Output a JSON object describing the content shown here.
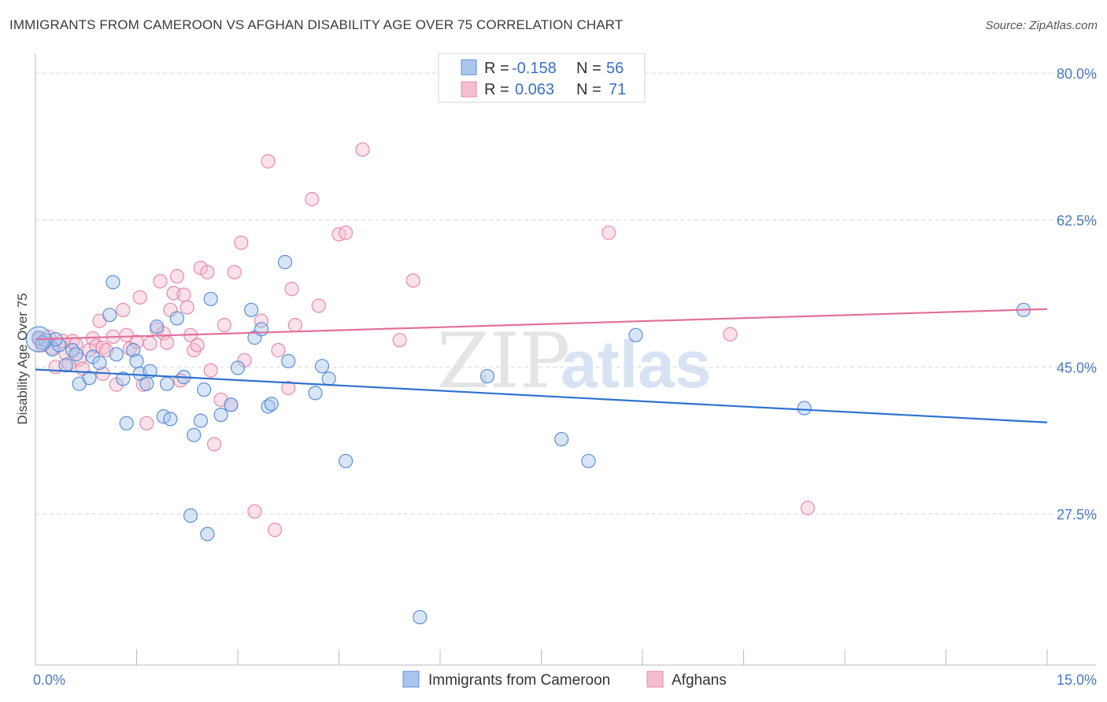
{
  "title": "IMMIGRANTS FROM CAMEROON VS AFGHAN DISABILITY AGE OVER 75 CORRELATION CHART",
  "source": "Source: ZipAtlas.com",
  "watermark": {
    "zip": "ZIP",
    "atlas": "atlas"
  },
  "colors": {
    "blue_fill": "#a9c6ee",
    "blue_stroke": "#5b8fd6",
    "blue_line": "#2f72cf",
    "pink_fill": "#f6bdd0",
    "pink_stroke": "#e68aa9",
    "pink_line": "#e2709a",
    "grid": "#d9d9d9",
    "tick_label": "#4a78c2"
  },
  "legend": {
    "rows": [
      {
        "r_label": "R =",
        "r_value": "-0.158",
        "n_label": "N =",
        "n_value": "56"
      },
      {
        "r_label": "R =",
        "r_value": "0.063",
        "n_label": "N =",
        "n_value": "71"
      }
    ]
  },
  "chart_data": {
    "type": "scatter",
    "title": "IMMIGRANTS FROM CAMEROON VS AFGHAN DISABILITY AGE OVER 75 CORRELATION CHART",
    "xlabel": "",
    "ylabel": "Disability Age Over 75",
    "xlim": [
      0,
      15
    ],
    "ylim": [
      9.5,
      81.5
    ],
    "x_tick_labels": [
      "0.0%",
      "15.0%"
    ],
    "y_ticks": [
      27.5,
      45.0,
      62.5,
      80.0
    ],
    "y_tick_labels": [
      "27.5%",
      "45.0%",
      "62.5%",
      "80.0%"
    ],
    "grid": true,
    "legend_placement": "bottom",
    "series": [
      {
        "name": "Immigrants from Cameroon",
        "color": "#5b8fd6",
        "trend": {
          "x": [
            0,
            15
          ],
          "y": [
            44.7,
            38.4
          ]
        },
        "points": [
          [
            0.05,
            48.5
          ],
          [
            0.15,
            48.2
          ],
          [
            0.25,
            47.1
          ],
          [
            0.35,
            47.6
          ],
          [
            0.45,
            45.2
          ],
          [
            0.55,
            47.0
          ],
          [
            0.65,
            43.0
          ],
          [
            0.8,
            43.7
          ],
          [
            0.85,
            46.2
          ],
          [
            0.95,
            45.5
          ],
          [
            1.1,
            51.2
          ],
          [
            1.15,
            55.1
          ],
          [
            1.2,
            46.5
          ],
          [
            1.3,
            43.6
          ],
          [
            1.35,
            38.3
          ],
          [
            1.45,
            47.0
          ],
          [
            1.5,
            45.7
          ],
          [
            1.55,
            44.2
          ],
          [
            1.65,
            43.0
          ],
          [
            1.7,
            44.5
          ],
          [
            1.8,
            49.8
          ],
          [
            1.9,
            39.1
          ],
          [
            1.95,
            43.0
          ],
          [
            2.0,
            38.8
          ],
          [
            2.1,
            50.8
          ],
          [
            2.2,
            43.8
          ],
          [
            2.3,
            27.3
          ],
          [
            2.35,
            36.9
          ],
          [
            2.45,
            38.6
          ],
          [
            2.5,
            42.3
          ],
          [
            2.55,
            25.1
          ],
          [
            2.6,
            53.1
          ],
          [
            2.75,
            39.3
          ],
          [
            2.9,
            40.5
          ],
          [
            3.0,
            44.9
          ],
          [
            3.2,
            51.8
          ],
          [
            3.25,
            48.5
          ],
          [
            3.35,
            49.5
          ],
          [
            3.45,
            40.3
          ],
          [
            3.5,
            40.6
          ],
          [
            3.7,
            57.5
          ],
          [
            3.75,
            45.7
          ],
          [
            4.15,
            41.9
          ],
          [
            4.25,
            45.1
          ],
          [
            4.35,
            43.6
          ],
          [
            4.6,
            33.8
          ],
          [
            5.7,
            15.2
          ],
          [
            6.7,
            43.9
          ],
          [
            7.8,
            36.4
          ],
          [
            8.2,
            33.8
          ],
          [
            8.9,
            48.8
          ],
          [
            11.4,
            40.1
          ],
          [
            14.65,
            51.8
          ],
          [
            0.1,
            47.9
          ],
          [
            0.6,
            46.5
          ],
          [
            0.3,
            48.3
          ]
        ]
      },
      {
        "name": "Afghans",
        "color": "#e68aa9",
        "trend": {
          "x": [
            0,
            15
          ],
          "y": [
            48.3,
            51.9
          ]
        },
        "points": [
          [
            0.05,
            48.3
          ],
          [
            0.1,
            47.6
          ],
          [
            0.15,
            47.9
          ],
          [
            0.2,
            48.6
          ],
          [
            0.3,
            45.0
          ],
          [
            0.4,
            48.1
          ],
          [
            0.45,
            46.6
          ],
          [
            0.5,
            45.4
          ],
          [
            0.55,
            48.1
          ],
          [
            0.6,
            47.7
          ],
          [
            0.65,
            45.9
          ],
          [
            0.7,
            44.8
          ],
          [
            0.8,
            47.0
          ],
          [
            0.85,
            48.4
          ],
          [
            0.9,
            47.5
          ],
          [
            0.95,
            50.5
          ],
          [
            1.0,
            47.3
          ],
          [
            1.05,
            47.0
          ],
          [
            1.15,
            48.6
          ],
          [
            1.2,
            42.9
          ],
          [
            1.3,
            51.8
          ],
          [
            1.35,
            48.8
          ],
          [
            1.4,
            47.2
          ],
          [
            1.5,
            48.0
          ],
          [
            1.55,
            53.3
          ],
          [
            1.6,
            42.9
          ],
          [
            1.65,
            38.3
          ],
          [
            1.7,
            47.8
          ],
          [
            1.8,
            49.5
          ],
          [
            1.85,
            55.2
          ],
          [
            1.9,
            49.0
          ],
          [
            1.95,
            47.9
          ],
          [
            2.0,
            51.8
          ],
          [
            2.05,
            53.8
          ],
          [
            2.1,
            55.8
          ],
          [
            2.15,
            43.4
          ],
          [
            2.2,
            53.6
          ],
          [
            2.25,
            52.1
          ],
          [
            2.3,
            48.8
          ],
          [
            2.35,
            47.0
          ],
          [
            2.4,
            47.6
          ],
          [
            2.45,
            56.8
          ],
          [
            2.55,
            56.3
          ],
          [
            2.6,
            44.6
          ],
          [
            2.65,
            35.8
          ],
          [
            2.75,
            41.1
          ],
          [
            2.8,
            50.0
          ],
          [
            2.9,
            40.5
          ],
          [
            2.95,
            56.3
          ],
          [
            3.05,
            59.8
          ],
          [
            3.1,
            45.8
          ],
          [
            3.25,
            27.8
          ],
          [
            3.35,
            50.5
          ],
          [
            3.45,
            69.5
          ],
          [
            3.55,
            25.6
          ],
          [
            3.6,
            47.0
          ],
          [
            3.75,
            42.5
          ],
          [
            3.8,
            54.3
          ],
          [
            3.85,
            50.0
          ],
          [
            4.1,
            65.0
          ],
          [
            4.2,
            52.3
          ],
          [
            4.5,
            60.8
          ],
          [
            4.6,
            61.0
          ],
          [
            4.85,
            70.9
          ],
          [
            5.4,
            48.2
          ],
          [
            5.6,
            55.3
          ],
          [
            8.5,
            61.0
          ],
          [
            10.3,
            48.9
          ],
          [
            11.45,
            28.2
          ],
          [
            1.0,
            44.2
          ],
          [
            0.25,
            47.3
          ]
        ]
      }
    ]
  }
}
